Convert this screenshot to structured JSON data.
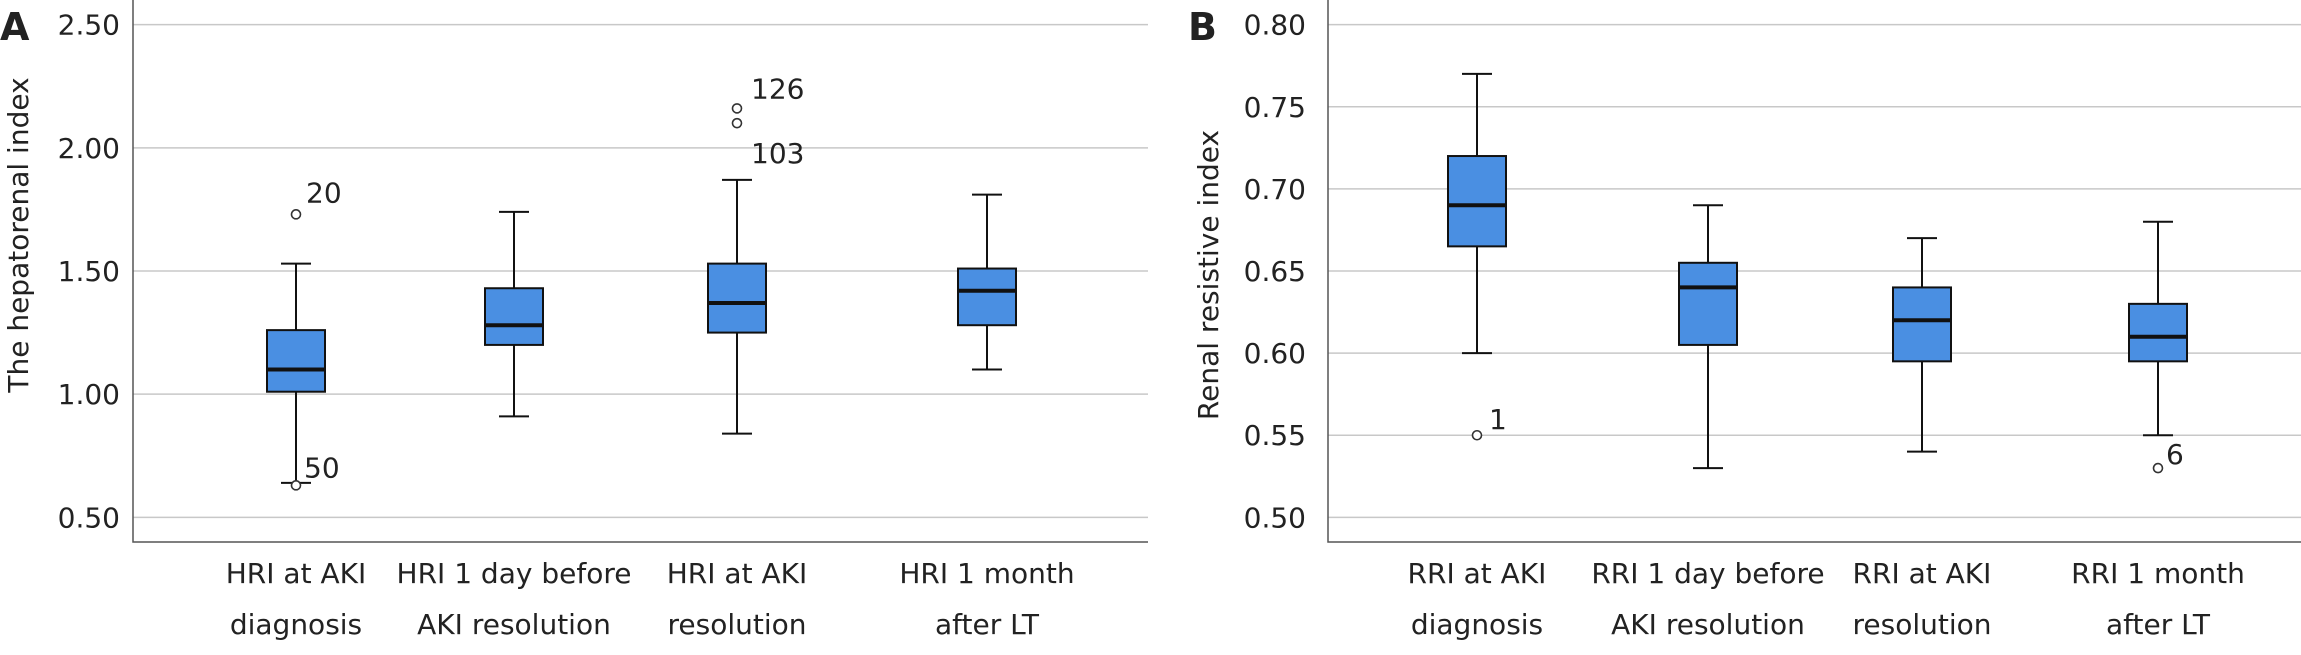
{
  "chart_data": [
    {
      "panel_label": "A",
      "type": "box",
      "ylabel": "The hepatorenal index",
      "xlabel": "",
      "ylim": [
        0.4,
        2.6
      ],
      "yticks": [
        "0.50",
        "1.00",
        "1.50",
        "2.00",
        "2.50"
      ],
      "ytick_values": [
        0.5,
        1.0,
        1.5,
        2.0,
        2.5
      ],
      "grid": true,
      "box_color": "#4a8fe2",
      "categories": [
        [
          "HRI at AKI",
          "diagnosis"
        ],
        [
          "HRI 1 day before",
          "AKI resolution"
        ],
        [
          "HRI at AKI",
          "resolution"
        ],
        [
          "HRI 1 month",
          "after LT"
        ]
      ],
      "boxes": [
        {
          "whisker_low": 0.64,
          "q1": 1.01,
          "median": 1.1,
          "q3": 1.26,
          "whisker_high": 1.53,
          "outliers": [
            {
              "value": 1.73,
              "label": "20"
            },
            {
              "value": 0.63,
              "label": "50"
            }
          ]
        },
        {
          "whisker_low": 0.91,
          "q1": 1.2,
          "median": 1.28,
          "q3": 1.43,
          "whisker_high": 1.74,
          "outliers": []
        },
        {
          "whisker_low": 0.84,
          "q1": 1.25,
          "median": 1.37,
          "q3": 1.53,
          "whisker_high": 1.87,
          "outliers": [
            {
              "value": 2.16,
              "label": "126"
            },
            {
              "value": 2.1,
              "label": "103"
            }
          ]
        },
        {
          "whisker_low": 1.1,
          "q1": 1.28,
          "median": 1.42,
          "q3": 1.51,
          "whisker_high": 1.81,
          "outliers": []
        }
      ]
    },
    {
      "panel_label": "B",
      "type": "box",
      "ylabel": "Renal resistive index",
      "xlabel": "",
      "ylim": [
        0.485,
        0.815
      ],
      "yticks": [
        "0.50",
        "0.55",
        "0.60",
        "0.65",
        "0.70",
        "0.75",
        "0.80"
      ],
      "ytick_values": [
        0.5,
        0.55,
        0.6,
        0.65,
        0.7,
        0.75,
        0.8
      ],
      "grid": true,
      "box_color": "#4a8fe2",
      "categories": [
        [
          "RRI at AKI",
          "diagnosis"
        ],
        [
          "RRI 1 day before",
          "AKI resolution"
        ],
        [
          "RRI at AKI",
          "resolution"
        ],
        [
          "RRI 1 month",
          "after LT"
        ]
      ],
      "boxes": [
        {
          "whisker_low": 0.6,
          "q1": 0.665,
          "median": 0.69,
          "q3": 0.72,
          "whisker_high": 0.77,
          "outliers": [
            {
              "value": 0.55,
              "label": "1"
            }
          ]
        },
        {
          "whisker_low": 0.53,
          "q1": 0.605,
          "median": 0.64,
          "q3": 0.655,
          "whisker_high": 0.69,
          "outliers": []
        },
        {
          "whisker_low": 0.54,
          "q1": 0.595,
          "median": 0.62,
          "q3": 0.64,
          "whisker_high": 0.67,
          "outliers": []
        },
        {
          "whisker_low": 0.55,
          "q1": 0.595,
          "median": 0.61,
          "q3": 0.63,
          "whisker_high": 0.68,
          "outliers": [
            {
              "value": 0.53,
              "label": "6"
            }
          ]
        }
      ]
    }
  ]
}
